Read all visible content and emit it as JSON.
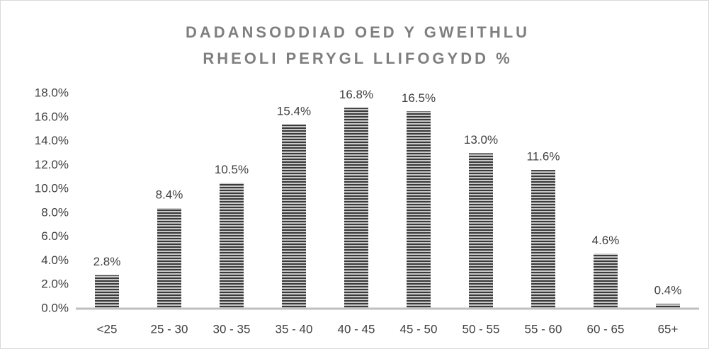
{
  "chart_data": {
    "type": "bar",
    "title": [
      "DADANSODDIAD OED Y GWEITHLU",
      "RHEOLI PERYGL LLIFOGYDD %"
    ],
    "categories": [
      "<25",
      "25 - 30",
      "30 - 35",
      "35 - 40",
      "40 - 45",
      "45 - 50",
      "50 - 55",
      "55 - 60",
      "60 - 65",
      "65+"
    ],
    "values": [
      2.8,
      8.4,
      10.5,
      15.4,
      16.8,
      16.5,
      13.0,
      11.6,
      4.6,
      0.4
    ],
    "value_labels": [
      "2.8%",
      "8.4%",
      "10.5%",
      "15.4%",
      "16.8%",
      "16.5%",
      "13.0%",
      "11.6%",
      "4.6%",
      "0.4%"
    ],
    "color": "#3a3a3a",
    "ylim": [
      0,
      18
    ],
    "yticks": [
      {
        "value": 0,
        "label": "0.0%"
      },
      {
        "value": 2,
        "label": "2.0%"
      },
      {
        "value": 4,
        "label": "4.0%"
      },
      {
        "value": 6,
        "label": "6.0%"
      },
      {
        "value": 8,
        "label": "8.0%"
      },
      {
        "value": 10,
        "label": "10.0%"
      },
      {
        "value": 12,
        "label": "12.0%"
      },
      {
        "value": 14,
        "label": "14.0%"
      },
      {
        "value": 16,
        "label": "16.0%"
      },
      {
        "value": 18,
        "label": "18.0%"
      }
    ],
    "grid": false
  }
}
